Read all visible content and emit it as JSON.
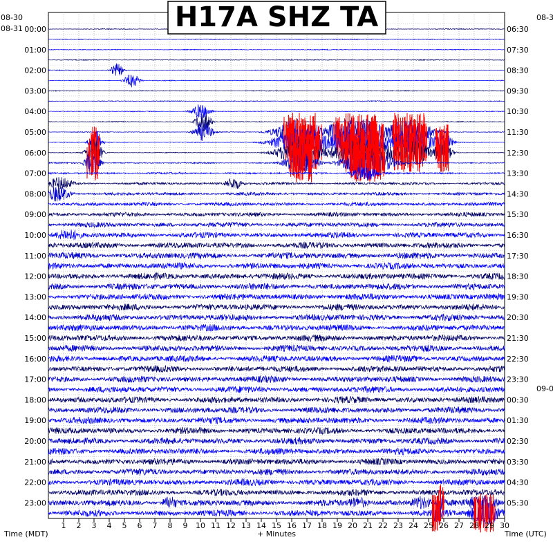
{
  "chart_data": {
    "type": "helicorder",
    "title": "H17A SHZ TA",
    "left_date_top": "08-30",
    "left_date_second": "08-31",
    "right_date_top": "08-3",
    "right_date_change": "09-0",
    "left_hours": [
      "00:00",
      "01:00",
      "02:00",
      "03:00",
      "04:00",
      "05:00",
      "06:00",
      "07:00",
      "08:00",
      "09:00",
      "10:00",
      "11:00",
      "12:00",
      "13:00",
      "14:00",
      "15:00",
      "16:00",
      "17:00",
      "18:00",
      "19:00",
      "20:00",
      "21:00",
      "22:00",
      "23:00"
    ],
    "right_hours": [
      "06:30",
      "07:30",
      "08:30",
      "09:30",
      "10:30",
      "11:30",
      "12:30",
      "13:30",
      "14:30",
      "15:30",
      "16:30",
      "17:30",
      "18:30",
      "19:30",
      "20:30",
      "21:30",
      "22:30",
      "23:30",
      "00:30",
      "01:30",
      "02:30",
      "03:30",
      "04:30",
      "05:30"
    ],
    "x_ticks": [
      "1",
      "2",
      "3",
      "4",
      "5",
      "6",
      "7",
      "8",
      "9",
      "10",
      "11",
      "12",
      "13",
      "14",
      "15",
      "16",
      "17",
      "18",
      "19",
      "20",
      "21",
      "22",
      "23",
      "24",
      "25",
      "26",
      "27",
      "28",
      "29",
      "30"
    ],
    "xlabel": "+ Minutes",
    "left_axis_label": "Time (MDT)",
    "right_axis_label": "Time (UTC)",
    "x_range_minutes": [
      0,
      30
    ],
    "traces_per_hour": 2,
    "trace_colors": [
      "#000066",
      "#0000cc",
      "#0000ff"
    ],
    "clip_color": "#ff0000",
    "grid": "dotted",
    "events": [
      {
        "trace": 4,
        "minute": 4.5,
        "width": 0.4,
        "amp": 10,
        "clip": false
      },
      {
        "trace": 5,
        "minute": 5.5,
        "width": 0.5,
        "amp": 10,
        "clip": false
      },
      {
        "trace": 8,
        "minute": 10.0,
        "width": 0.6,
        "amp": 11,
        "clip": false
      },
      {
        "trace": 9,
        "minute": 10.2,
        "width": 0.5,
        "amp": 14,
        "clip": false
      },
      {
        "trace": 10,
        "minute": 10.2,
        "width": 0.6,
        "amp": 14,
        "clip": false
      },
      {
        "trace": 11,
        "minute": 3.1,
        "width": 0.4,
        "amp": 18,
        "clip": true
      },
      {
        "trace": 12,
        "minute": 3.0,
        "width": 0.5,
        "amp": 20,
        "clip": true
      },
      {
        "trace": 13,
        "minute": 2.9,
        "width": 0.5,
        "amp": 16,
        "clip": true
      },
      {
        "trace": 10,
        "minute": 16.5,
        "width": 1.5,
        "amp": 20,
        "clip": true
      },
      {
        "trace": 11,
        "minute": 16.8,
        "width": 1.8,
        "amp": 22,
        "clip": true
      },
      {
        "trace": 12,
        "minute": 16.7,
        "width": 1.5,
        "amp": 22,
        "clip": true
      },
      {
        "trace": 13,
        "minute": 16.6,
        "width": 1.0,
        "amp": 18,
        "clip": true
      },
      {
        "trace": 10,
        "minute": 20.2,
        "width": 2.0,
        "amp": 22,
        "clip": true
      },
      {
        "trace": 11,
        "minute": 20.5,
        "width": 2.2,
        "amp": 22,
        "clip": true
      },
      {
        "trace": 12,
        "minute": 20.6,
        "width": 2.0,
        "amp": 22,
        "clip": true
      },
      {
        "trace": 13,
        "minute": 21.0,
        "width": 1.6,
        "amp": 20,
        "clip": true
      },
      {
        "trace": 14,
        "minute": 20.8,
        "width": 0.8,
        "amp": 12,
        "clip": false
      },
      {
        "trace": 10,
        "minute": 23.7,
        "width": 1.5,
        "amp": 20,
        "clip": true
      },
      {
        "trace": 11,
        "minute": 23.8,
        "width": 1.5,
        "amp": 20,
        "clip": true
      },
      {
        "trace": 12,
        "minute": 23.7,
        "width": 1.4,
        "amp": 20,
        "clip": true
      },
      {
        "trace": 11,
        "minute": 25.9,
        "width": 0.6,
        "amp": 18,
        "clip": true
      },
      {
        "trace": 12,
        "minute": 25.9,
        "width": 0.6,
        "amp": 16,
        "clip": true
      },
      {
        "trace": 15,
        "minute": 0.8,
        "width": 0.8,
        "amp": 10,
        "clip": false
      },
      {
        "trace": 16,
        "minute": 0.6,
        "width": 0.8,
        "amp": 12,
        "clip": false
      },
      {
        "trace": 15,
        "minute": 12.2,
        "width": 0.6,
        "amp": 9,
        "clip": false
      },
      {
        "trace": 20,
        "minute": 1.3,
        "width": 1.0,
        "amp": 9,
        "clip": false
      },
      {
        "trace": 46,
        "minute": 8.0,
        "width": 0.6,
        "amp": 10,
        "clip": false
      },
      {
        "trace": 46,
        "minute": 20.3,
        "width": 0.8,
        "amp": 9,
        "clip": false
      },
      {
        "trace": 46,
        "minute": 24.5,
        "width": 0.8,
        "amp": 10,
        "clip": false
      },
      {
        "trace": 47,
        "minute": 25.5,
        "width": 0.4,
        "amp": 16,
        "clip": true
      },
      {
        "trace": 46,
        "minute": 25.8,
        "width": 0.3,
        "amp": 14,
        "clip": true
      },
      {
        "trace": 46,
        "minute": 28.5,
        "width": 1.2,
        "amp": 12,
        "clip": false
      },
      {
        "trace": 47,
        "minute": 28.7,
        "width": 1.0,
        "amp": 20,
        "clip": true
      }
    ]
  }
}
